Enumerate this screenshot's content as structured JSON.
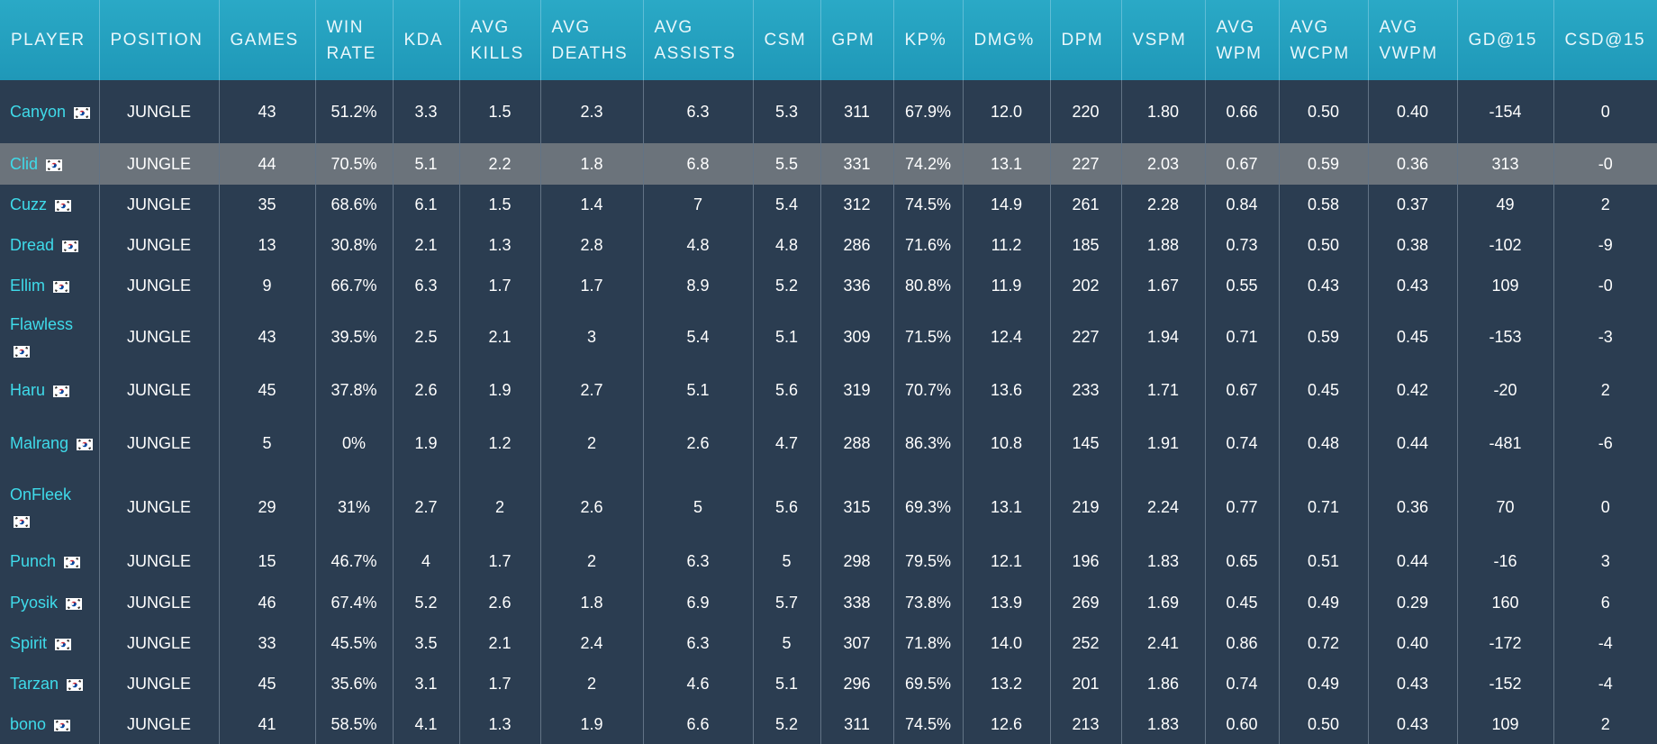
{
  "header": {
    "columns": [
      "PLAYER",
      "POSITION",
      "GAMES",
      "WIN RATE",
      "KDA",
      "AVG KILLS",
      "AVG DEATHS",
      "AVG ASSISTS",
      "CSM",
      "GPM",
      "KP%",
      "DMG%",
      "DPM",
      "VSPM",
      "AVG WPM",
      "AVG WCPM",
      "AVG VWPM",
      "GD@15",
      "CSD@15"
    ]
  },
  "table": {
    "rows": [
      [
        "Canyon",
        "JUNGLE",
        "43",
        "51.2%",
        "3.3",
        "1.5",
        "2.3",
        "6.3",
        "5.3",
        "311",
        "67.9%",
        "12.0",
        "220",
        "1.80",
        "0.66",
        "0.50",
        "0.40",
        "-154",
        "0"
      ],
      [
        "Clid",
        "JUNGLE",
        "44",
        "70.5%",
        "5.1",
        "2.2",
        "1.8",
        "6.8",
        "5.5",
        "331",
        "74.2%",
        "13.1",
        "227",
        "2.03",
        "0.67",
        "0.59",
        "0.36",
        "313",
        "-0"
      ],
      [
        "Cuzz",
        "JUNGLE",
        "35",
        "68.6%",
        "6.1",
        "1.5",
        "1.4",
        "7",
        "5.4",
        "312",
        "74.5%",
        "14.9",
        "261",
        "2.28",
        "0.84",
        "0.58",
        "0.37",
        "49",
        "2"
      ],
      [
        "Dread",
        "JUNGLE",
        "13",
        "30.8%",
        "2.1",
        "1.3",
        "2.8",
        "4.8",
        "4.8",
        "286",
        "71.6%",
        "11.2",
        "185",
        "1.88",
        "0.73",
        "0.50",
        "0.38",
        "-102",
        "-9"
      ],
      [
        "Ellim",
        "JUNGLE",
        "9",
        "66.7%",
        "6.3",
        "1.7",
        "1.7",
        "8.9",
        "5.2",
        "336",
        "80.8%",
        "11.9",
        "202",
        "1.67",
        "0.55",
        "0.43",
        "0.43",
        "109",
        "-0"
      ],
      [
        "Flawless",
        "JUNGLE",
        "43",
        "39.5%",
        "2.5",
        "2.1",
        "3",
        "5.4",
        "5.1",
        "309",
        "71.5%",
        "12.4",
        "227",
        "1.94",
        "0.71",
        "0.59",
        "0.45",
        "-153",
        "-3"
      ],
      [
        "Haru",
        "JUNGLE",
        "45",
        "37.8%",
        "2.6",
        "1.9",
        "2.7",
        "5.1",
        "5.6",
        "319",
        "70.7%",
        "13.6",
        "233",
        "1.71",
        "0.67",
        "0.45",
        "0.42",
        "-20",
        "2"
      ],
      [
        "Malrang",
        "JUNGLE",
        "5",
        "0%",
        "1.9",
        "1.2",
        "2",
        "2.6",
        "4.7",
        "288",
        "86.3%",
        "10.8",
        "145",
        "1.91",
        "0.74",
        "0.48",
        "0.44",
        "-481",
        "-6"
      ],
      [
        "OnFleek",
        "JUNGLE",
        "29",
        "31%",
        "2.7",
        "2",
        "2.6",
        "5",
        "5.6",
        "315",
        "69.3%",
        "13.1",
        "219",
        "2.24",
        "0.77",
        "0.71",
        "0.36",
        "70",
        "0"
      ],
      [
        "Punch",
        "JUNGLE",
        "15",
        "46.7%",
        "4",
        "1.7",
        "2",
        "6.3",
        "5",
        "298",
        "79.5%",
        "12.1",
        "196",
        "1.83",
        "0.65",
        "0.51",
        "0.44",
        "-16",
        "3"
      ],
      [
        "Pyosik",
        "JUNGLE",
        "46",
        "67.4%",
        "5.2",
        "2.6",
        "1.8",
        "6.9",
        "5.7",
        "338",
        "73.8%",
        "13.9",
        "269",
        "1.69",
        "0.45",
        "0.49",
        "0.29",
        "160",
        "6"
      ],
      [
        "Spirit",
        "JUNGLE",
        "33",
        "45.5%",
        "3.5",
        "2.1",
        "2.4",
        "6.3",
        "5",
        "307",
        "71.8%",
        "14.0",
        "252",
        "2.41",
        "0.86",
        "0.72",
        "0.40",
        "-172",
        "-4"
      ],
      [
        "Tarzan",
        "JUNGLE",
        "45",
        "35.6%",
        "3.1",
        "1.7",
        "2",
        "4.6",
        "5.1",
        "296",
        "69.5%",
        "13.2",
        "201",
        "1.86",
        "0.74",
        "0.49",
        "0.43",
        "-152",
        "-4"
      ],
      [
        "bono",
        "JUNGLE",
        "41",
        "58.5%",
        "4.1",
        "1.3",
        "1.9",
        "6.6",
        "5.2",
        "311",
        "74.5%",
        "12.6",
        "213",
        "1.83",
        "0.60",
        "0.50",
        "0.43",
        "109",
        "2"
      ]
    ]
  }
}
